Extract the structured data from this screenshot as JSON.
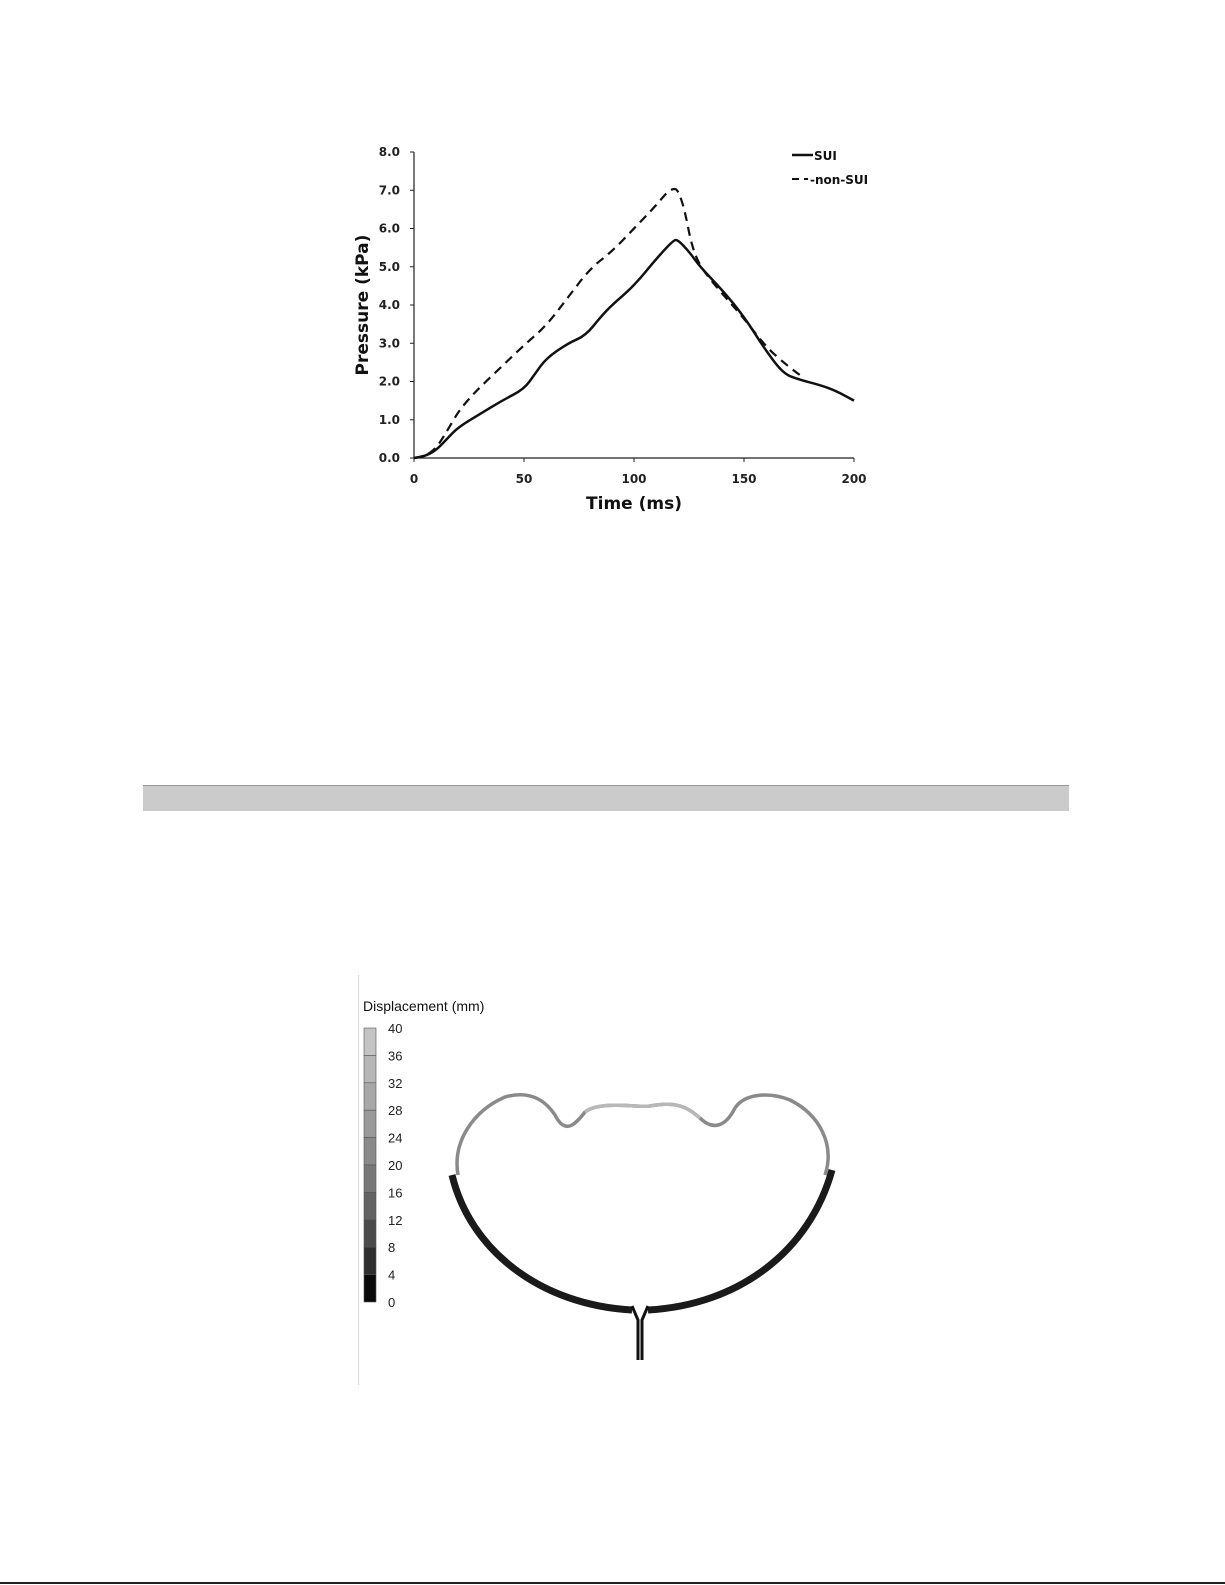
{
  "chart_data": {
    "type": "line",
    "xlabel": "Time (ms)",
    "ylabel": "Pressure (kPa)",
    "xlim": [
      0,
      200
    ],
    "ylim": [
      0,
      8
    ],
    "xticks": [
      "0",
      "50",
      "100",
      "150",
      "200"
    ],
    "yticks": [
      "0.0",
      "1.0",
      "2.0",
      "3.0",
      "4.0",
      "5.0",
      "6.0",
      "7.0",
      "8.0"
    ],
    "grid": false,
    "legend_position": "top-right",
    "series": [
      {
        "name": "SUI",
        "style": "solid",
        "color": "#111111",
        "x": [
          0,
          5,
          10,
          15,
          20,
          30,
          40,
          50,
          55,
          60,
          70,
          78,
          85,
          90,
          100,
          110,
          118,
          120,
          125,
          130,
          140,
          150,
          160,
          168,
          175,
          185,
          192,
          200
        ],
        "y": [
          0,
          0.05,
          0.2,
          0.5,
          0.8,
          1.15,
          1.5,
          1.8,
          2.2,
          2.6,
          3.0,
          3.2,
          3.7,
          4.0,
          4.5,
          5.2,
          5.7,
          5.7,
          5.4,
          5.0,
          4.4,
          3.7,
          2.8,
          2.2,
          2.05,
          1.9,
          1.75,
          1.5
        ]
      },
      {
        "name": "non-SUI",
        "style": "dashed",
        "color": "#111111",
        "x": [
          0,
          5,
          10,
          15,
          20,
          25,
          30,
          40,
          50,
          60,
          70,
          80,
          90,
          100,
          110,
          115,
          118,
          120,
          123,
          126,
          130,
          140,
          150,
          160,
          170,
          177
        ],
        "y": [
          0,
          0.05,
          0.25,
          0.7,
          1.2,
          1.55,
          1.85,
          2.4,
          2.95,
          3.45,
          4.2,
          4.95,
          5.4,
          6.0,
          6.6,
          6.95,
          7.05,
          7.0,
          6.5,
          5.6,
          5.0,
          4.3,
          3.65,
          2.9,
          2.4,
          2.1
        ]
      }
    ]
  },
  "legend": {
    "sui": "SUI",
    "non_sui": "-non-SUI"
  },
  "figure2": {
    "colorbar_title": "Displacement (mm)",
    "colorbar_ticks": [
      "40",
      "36",
      "32",
      "28",
      "24",
      "20",
      "16",
      "12",
      "8",
      "4",
      "0"
    ],
    "colorbar_colors": [
      "#c4c4c4",
      "#b6b6b6",
      "#a8a8a8",
      "#9a9a9a",
      "#8a8a8a",
      "#787878",
      "#636363",
      "#4a4a4a",
      "#2e2e2e",
      "#0a0a0a"
    ]
  }
}
